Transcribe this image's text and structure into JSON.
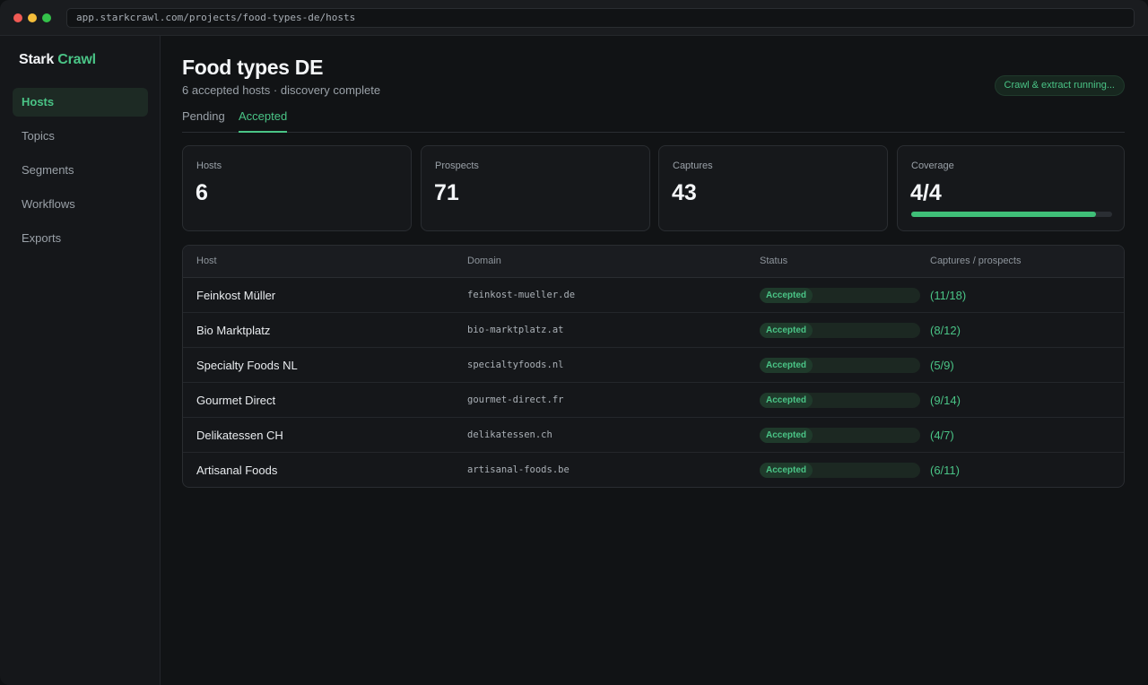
{
  "browser": {
    "url": "app.starkcrawl.com/projects/food-types-de/hosts"
  },
  "brand": {
    "name": "Stark",
    "accent": "Crawl"
  },
  "sidebar": {
    "items": [
      {
        "label": "Hosts",
        "active": true
      },
      {
        "label": "Topics",
        "active": false
      },
      {
        "label": "Segments",
        "active": false
      },
      {
        "label": "Workflows",
        "active": false
      },
      {
        "label": "Exports",
        "active": false
      }
    ]
  },
  "header": {
    "title": "Food types DE",
    "subtitle": "6 accepted hosts · discovery complete",
    "running_badge": "Crawl & extract running..."
  },
  "tabs": [
    {
      "label": "Pending",
      "active": false
    },
    {
      "label": "Accepted",
      "active": true
    }
  ],
  "stats": [
    {
      "label": "Hosts",
      "value": "6"
    },
    {
      "label": "Prospects",
      "value": "71"
    },
    {
      "label": "Captures",
      "value": "43"
    },
    {
      "label": "Coverage",
      "value": "4/4",
      "progress": 0.92
    }
  ],
  "table": {
    "columns": [
      "Host",
      "Domain",
      "Status",
      "Captures / prospects"
    ],
    "rows": [
      {
        "host": "Feinkost Müller",
        "domain": "feinkost-mueller.de",
        "status": "Accepted",
        "count": "(11/18)"
      },
      {
        "host": "Bio Marktplatz",
        "domain": "bio-marktplatz.at",
        "status": "Accepted",
        "count": "(8/12)"
      },
      {
        "host": "Specialty Foods NL",
        "domain": "specialtyfoods.nl",
        "status": "Accepted",
        "count": "(5/9)"
      },
      {
        "host": "Gourmet Direct",
        "domain": "gourmet-direct.fr",
        "status": "Accepted",
        "count": "(9/14)"
      },
      {
        "host": "Delikatessen CH",
        "domain": "delikatessen.ch",
        "status": "Accepted",
        "count": "(4/7)"
      },
      {
        "host": "Artisanal Foods",
        "domain": "artisanal-foods.be",
        "status": "Accepted",
        "count": "(6/11)"
      }
    ]
  },
  "colors": {
    "accent": "#4ac486",
    "background": "#111315",
    "card": "#16181b"
  }
}
